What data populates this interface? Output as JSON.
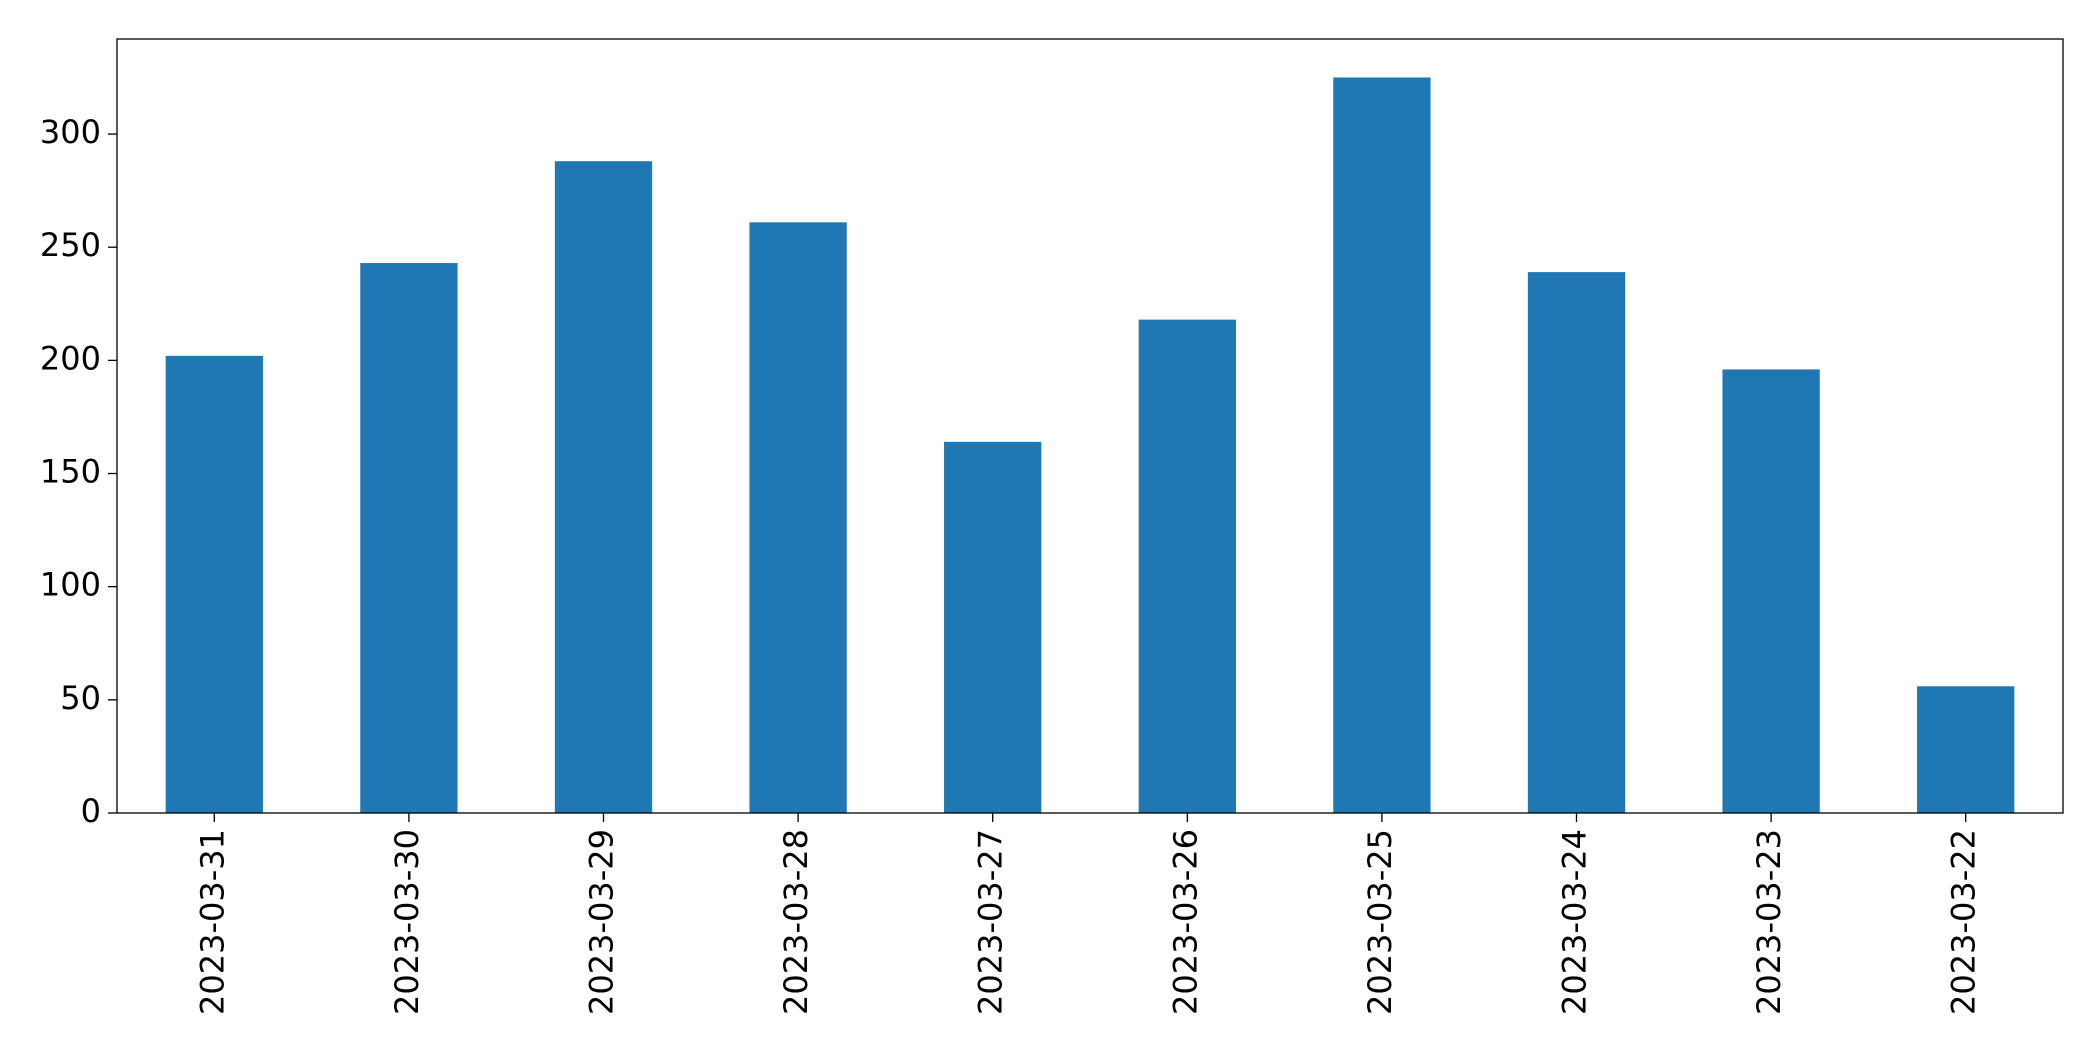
{
  "chart_data": {
    "type": "bar",
    "categories": [
      "2023-03-31",
      "2023-03-30",
      "2023-03-29",
      "2023-03-28",
      "2023-03-27",
      "2023-03-26",
      "2023-03-25",
      "2023-03-24",
      "2023-03-23",
      "2023-03-22"
    ],
    "values": [
      202,
      243,
      288,
      261,
      164,
      218,
      325,
      239,
      196,
      56
    ],
    "color": "#1f77b4",
    "ylim": [
      0,
      342
    ],
    "yticks": [
      0,
      50,
      100,
      150,
      200,
      250,
      300
    ],
    "grid": false
  }
}
